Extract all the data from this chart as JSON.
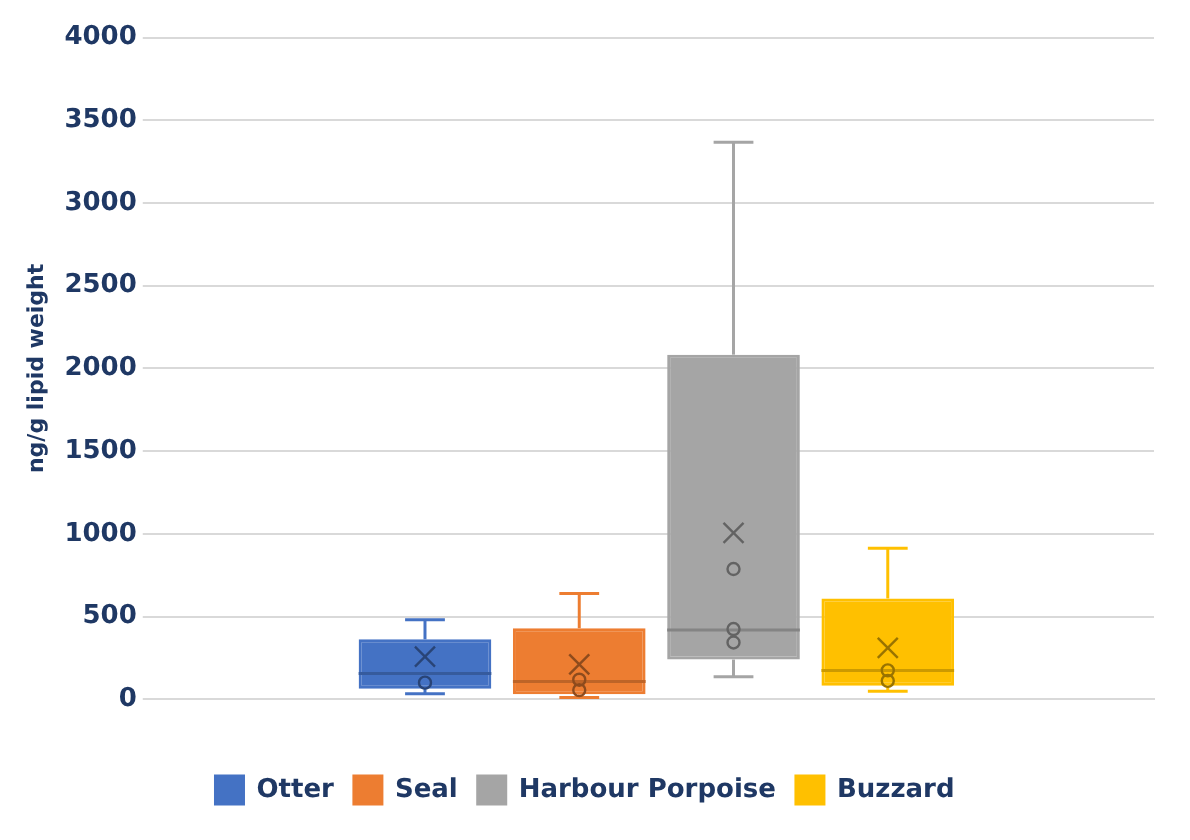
{
  "chart_data": {
    "type": "box",
    "ylabel": "ng/g lipid weight",
    "categories": [
      null
    ],
    "series": [
      {
        "name": "Otter",
        "color": "#4472c4",
        "boxes": [
          {
            "low": 33,
            "q1": 63,
            "median": 155,
            "q3": 362,
            "high": 480,
            "mean": 258,
            "outliers": [
              100
            ]
          }
        ]
      },
      {
        "name": "Seal",
        "color": "#ed7d31",
        "boxes": [
          {
            "low": 10,
            "q1": 30,
            "median": 107,
            "q3": 429,
            "high": 639,
            "mean": 210,
            "outliers": [
              55,
              118
            ]
          }
        ]
      },
      {
        "name": "Harbour Porpoise",
        "color": "#a5a5a5",
        "boxes": [
          {
            "low": 136,
            "q1": 240,
            "median": 418,
            "q3": 2083,
            "high": 3368,
            "mean": 1005,
            "outliers": [
              343,
              424,
              787
            ]
          }
        ]
      },
      {
        "name": "Buzzard",
        "color": "#ffc000",
        "boxes": [
          {
            "low": 48,
            "q1": 81,
            "median": 174,
            "q3": 609,
            "high": 912,
            "mean": 310,
            "outliers": [
              111,
              174
            ]
          }
        ]
      }
    ],
    "ylim": [
      0,
      4000
    ],
    "yticks": [
      0,
      500,
      1000,
      1500,
      2000,
      2500,
      3000,
      3500,
      4000
    ],
    "grid": "y",
    "legend": "bottom"
  }
}
